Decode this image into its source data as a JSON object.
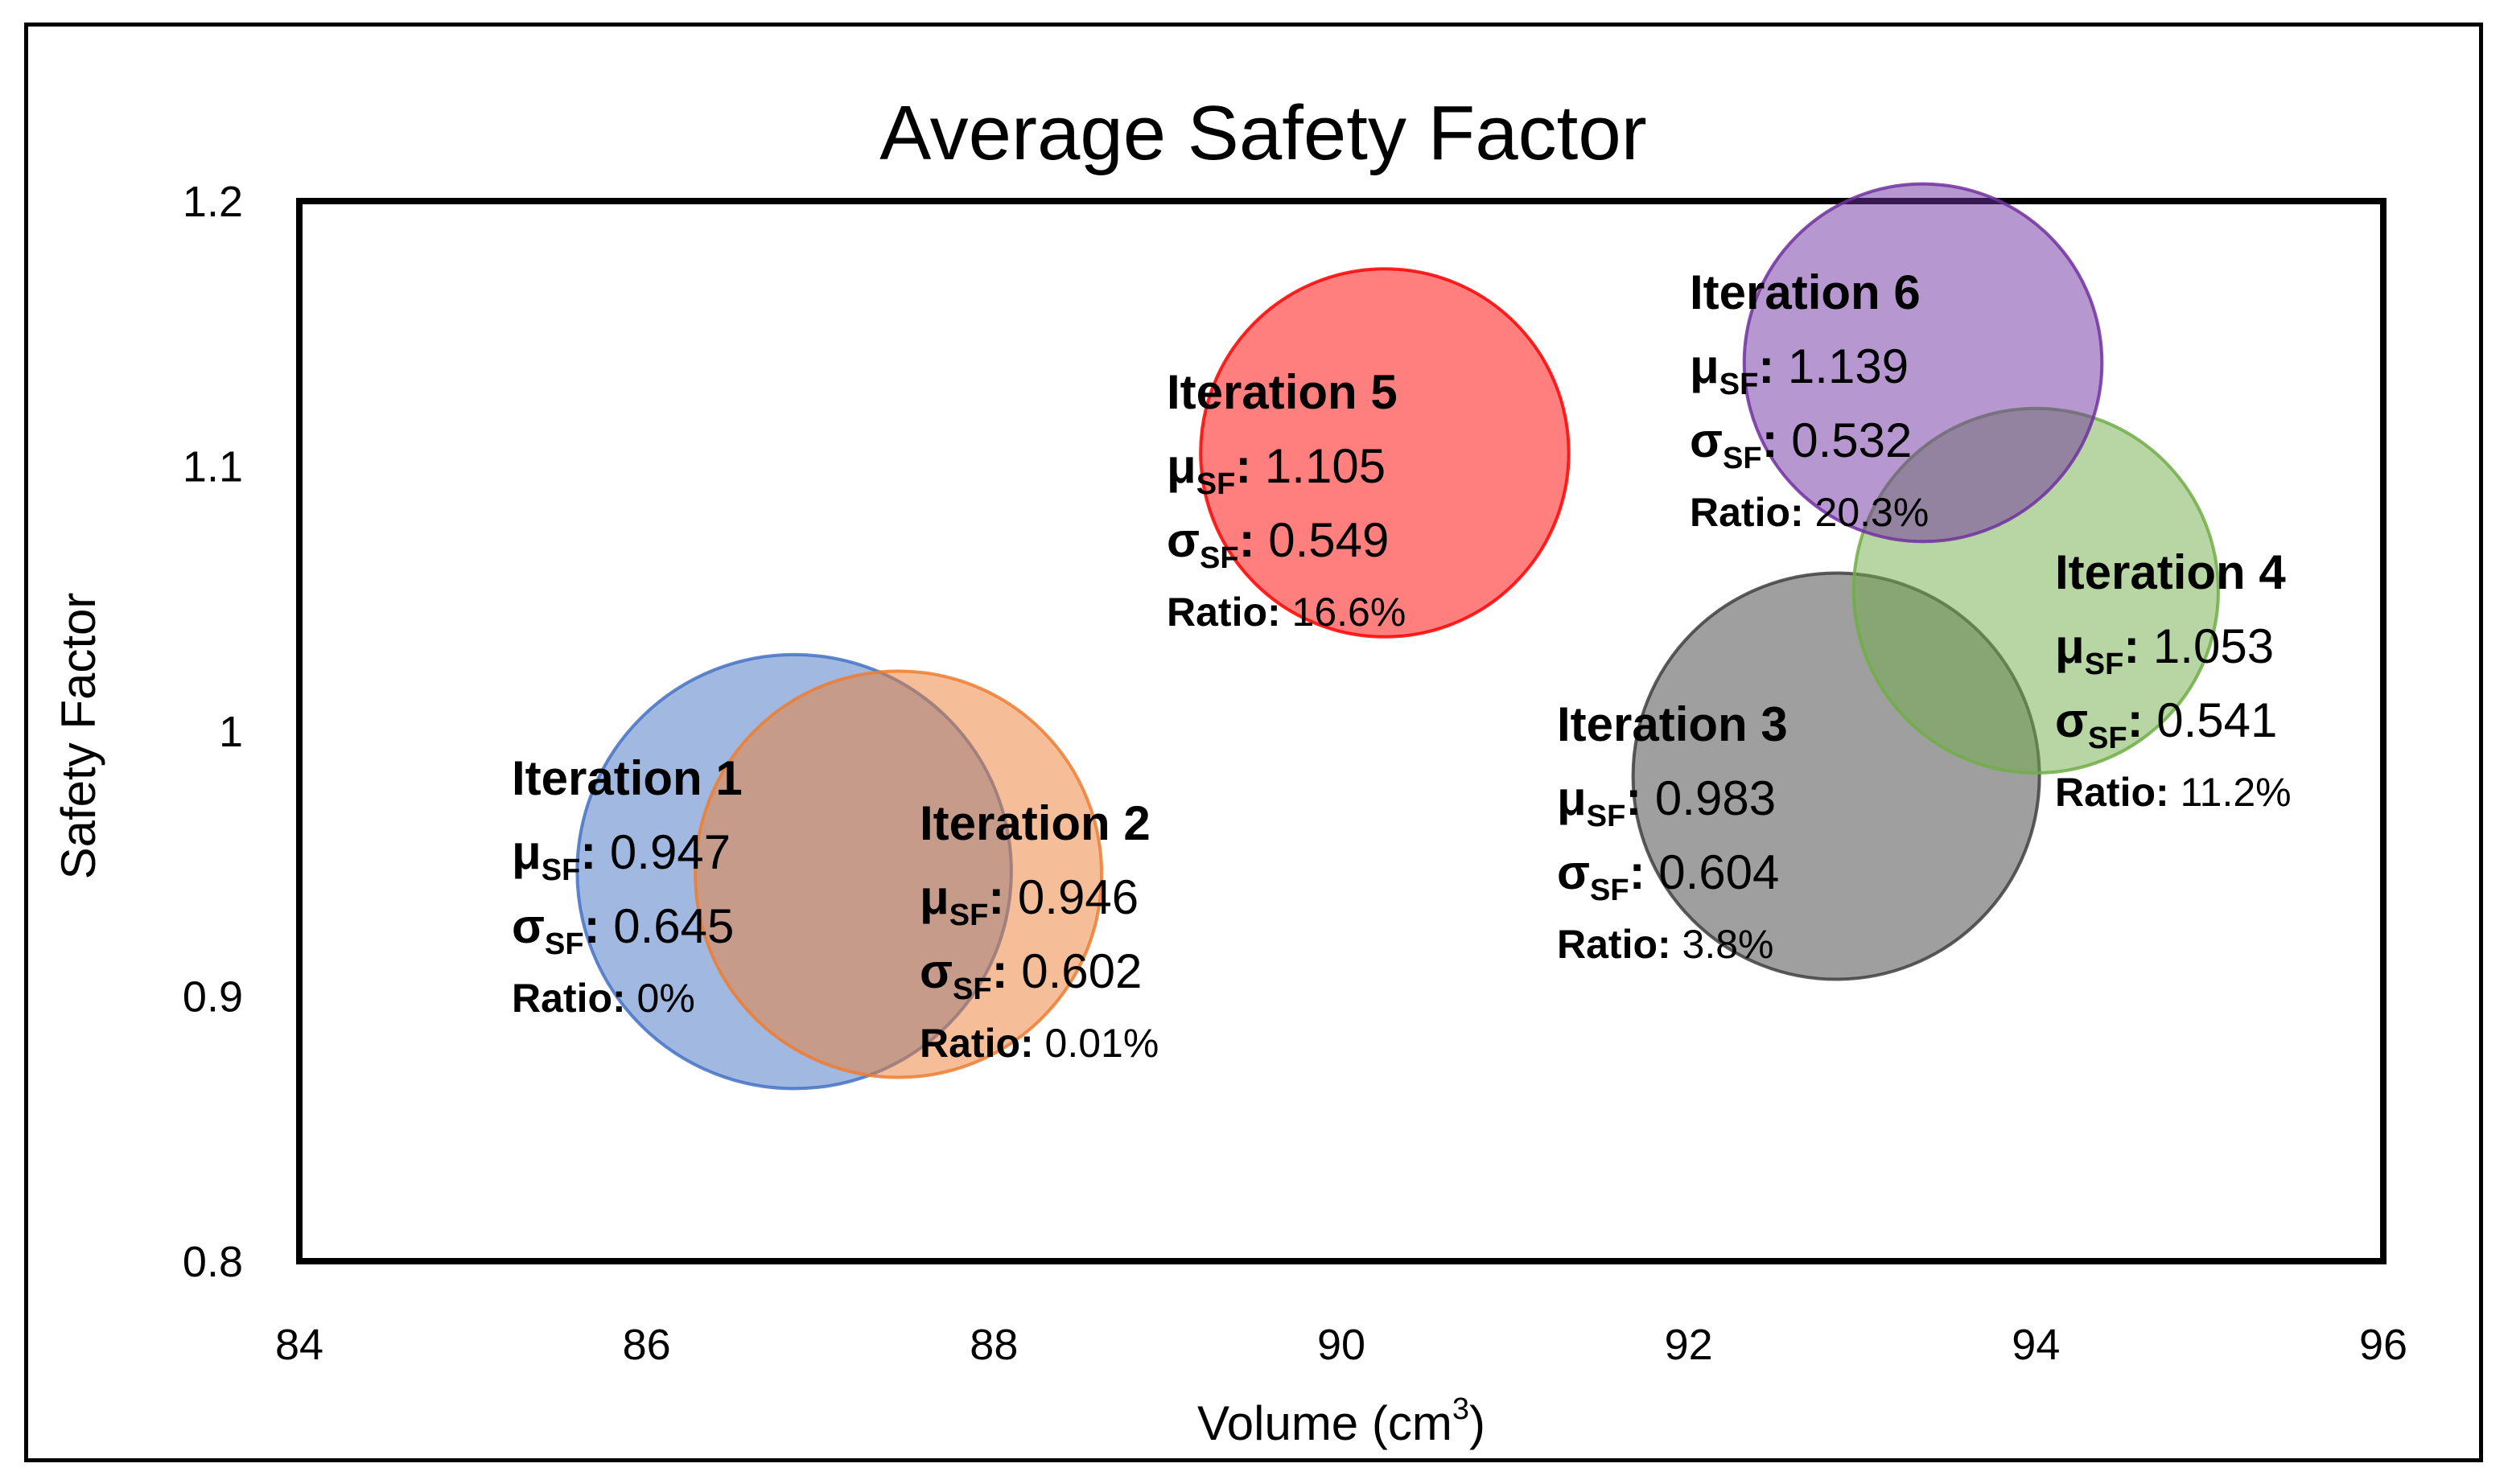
{
  "chart_data": {
    "type": "bubble",
    "title": "Average Safety Factor",
    "xlabel": "Volume (cm",
    "xlabel_sup": "3",
    "xlabel_end": ")",
    "ylabel": "Safety Factor",
    "xlim": [
      84,
      96
    ],
    "ylim": [
      0.8,
      1.2
    ],
    "x_ticks": [
      "84",
      "86",
      "88",
      "90",
      "92",
      "94",
      "96"
    ],
    "y_ticks": [
      "0.8",
      "0.9",
      "1",
      "1.1",
      "1.2"
    ],
    "grid": false,
    "mu_key": "μ",
    "sigma_key": "σ",
    "sub_key": "SF",
    "ratio_key": "Ratio:",
    "series": [
      {
        "name": "Iteration 1",
        "x": 86.85,
        "y": 0.947,
        "radius_volume": 1.25,
        "mu": "0.947",
        "sigma": "0.645",
        "ratio": "0%",
        "color": "#4472C4"
      },
      {
        "name": "Iteration 2",
        "x": 87.45,
        "y": 0.946,
        "radius_volume": 1.17,
        "mu": "0.946",
        "sigma": "0.602",
        "ratio": "0.01%",
        "color": "#ED7D31"
      },
      {
        "name": "Iteration 3",
        "x": 92.85,
        "y": 0.983,
        "radius_volume": 1.17,
        "mu": "0.983",
        "sigma": "0.604",
        "ratio": "3.8%",
        "color": "#404040"
      },
      {
        "name": "Iteration 4",
        "x": 94.0,
        "y": 1.053,
        "radius_volume": 1.05,
        "mu": "1.053",
        "sigma": "0.541",
        "ratio": "11.2%",
        "color": "#70AD47"
      },
      {
        "name": "Iteration 5",
        "x": 90.25,
        "y": 1.105,
        "radius_volume": 1.06,
        "mu": "1.105",
        "sigma": "0.549",
        "ratio": "16.6%",
        "color": "#FF0000"
      },
      {
        "name": "Iteration 6",
        "x": 93.35,
        "y": 1.139,
        "radius_volume": 1.03,
        "mu": "1.139",
        "sigma": "0.532",
        "ratio": "20.3%",
        "color": "#7030A0"
      }
    ]
  }
}
